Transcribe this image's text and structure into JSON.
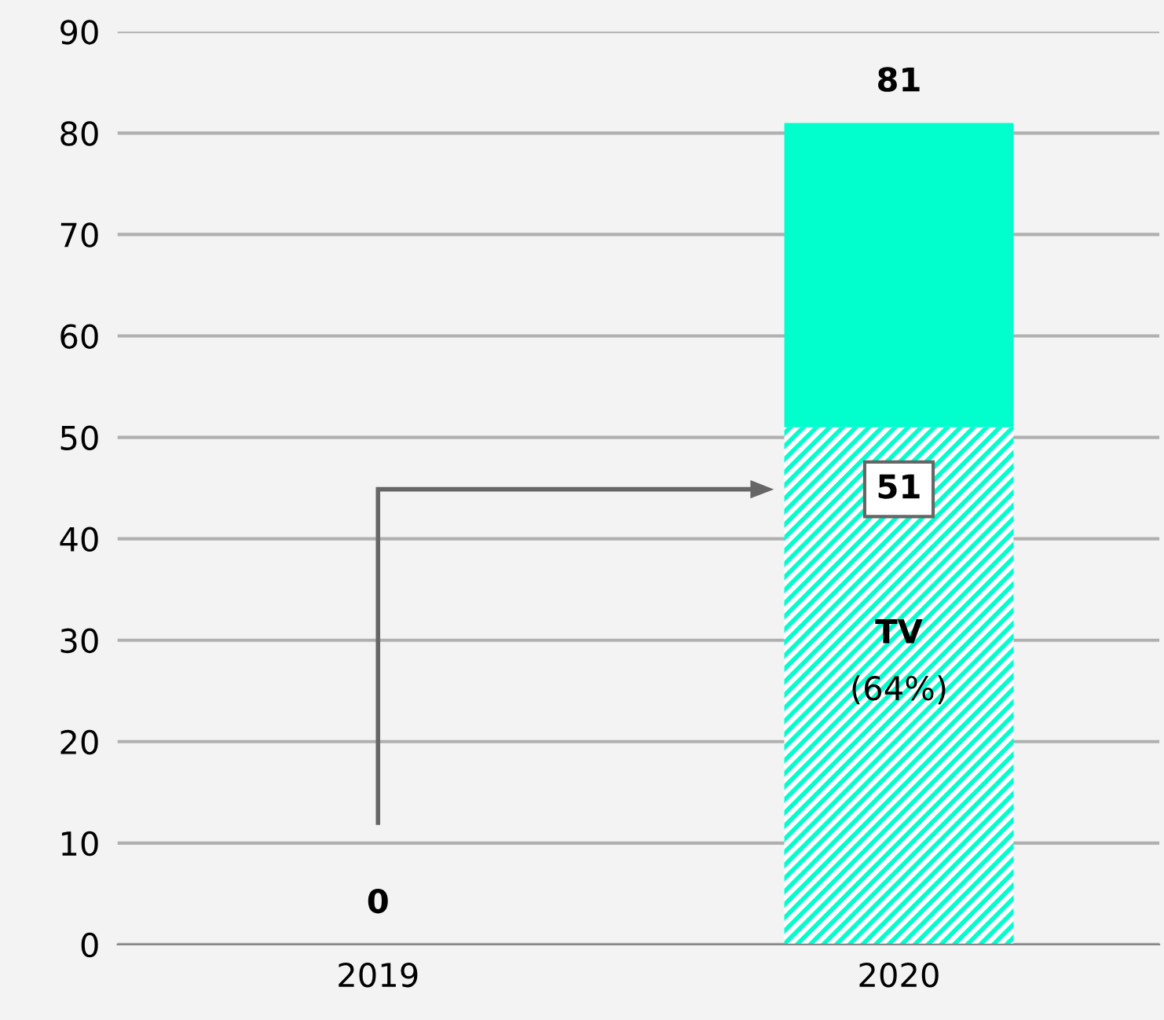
{
  "chart_data": {
    "type": "bar",
    "stacked": true,
    "categories": [
      "2019",
      "2020"
    ],
    "series": [
      {
        "name": "TV",
        "color": "#00ffcc",
        "values": [
          0,
          51
        ],
        "value_labels": [
          null,
          "51"
        ]
      },
      {
        "color": "#00ffcc",
        "values": [
          0,
          30
        ]
      }
    ],
    "totals": [
      "0",
      "81"
    ],
    "annotations": [
      "(64%)"
    ],
    "ylim": [
      0,
      90
    ],
    "yticks": [
      0,
      10,
      20,
      30,
      40,
      50,
      60,
      70,
      80,
      90
    ],
    "grid": "y"
  }
}
